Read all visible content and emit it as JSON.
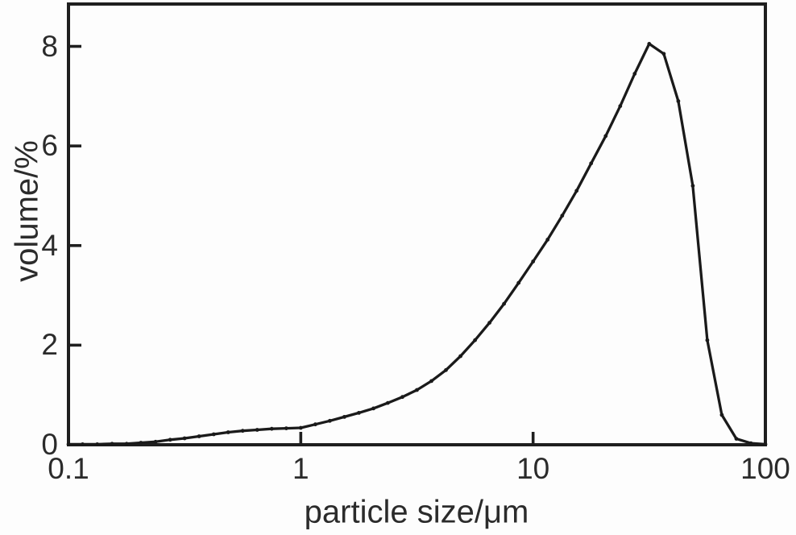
{
  "figure": {
    "background": "#fdfdfd",
    "line_color": "#1a1a1a",
    "axis_color": "#1f1f1f",
    "text_color": "#2b2b2b"
  },
  "chart_data": {
    "type": "line",
    "title": "",
    "xlabel": "particle size/μm",
    "ylabel": "volume/%",
    "x_scale": "log",
    "y_scale": "linear",
    "xlim": [
      0.1,
      100
    ],
    "ylim": [
      0,
      8.85
    ],
    "grid": false,
    "legend": null,
    "marker": "dot",
    "x_ticks": [
      {
        "value": 0.1,
        "label": "0.1"
      },
      {
        "value": 1,
        "label": "1"
      },
      {
        "value": 10,
        "label": "10"
      },
      {
        "value": 100,
        "label": "100"
      }
    ],
    "y_ticks": [
      {
        "value": 0,
        "label": "0"
      },
      {
        "value": 2,
        "label": "2"
      },
      {
        "value": 4,
        "label": "4"
      },
      {
        "value": 6,
        "label": "6"
      },
      {
        "value": 8,
        "label": "8"
      }
    ],
    "points": [
      [
        0.1,
        0.01
      ],
      [
        0.115,
        0.01
      ],
      [
        0.133,
        0.01
      ],
      [
        0.154,
        0.02
      ],
      [
        0.178,
        0.02
      ],
      [
        0.205,
        0.04
      ],
      [
        0.237,
        0.06
      ],
      [
        0.274,
        0.1
      ],
      [
        0.316,
        0.13
      ],
      [
        0.365,
        0.17
      ],
      [
        0.422,
        0.21
      ],
      [
        0.487,
        0.25
      ],
      [
        0.562,
        0.28
      ],
      [
        0.649,
        0.3
      ],
      [
        0.75,
        0.32
      ],
      [
        0.866,
        0.33
      ],
      [
        1.0,
        0.34
      ],
      [
        1.155,
        0.41
      ],
      [
        1.334,
        0.48
      ],
      [
        1.54,
        0.56
      ],
      [
        1.778,
        0.64
      ],
      [
        2.054,
        0.73
      ],
      [
        2.371,
        0.84
      ],
      [
        2.738,
        0.96
      ],
      [
        3.162,
        1.1
      ],
      [
        3.652,
        1.28
      ],
      [
        4.217,
        1.5
      ],
      [
        4.87,
        1.78
      ],
      [
        5.623,
        2.1
      ],
      [
        6.494,
        2.45
      ],
      [
        7.499,
        2.83
      ],
      [
        8.66,
        3.25
      ],
      [
        10.0,
        3.68
      ],
      [
        11.55,
        4.12
      ],
      [
        13.34,
        4.6
      ],
      [
        15.4,
        5.1
      ],
      [
        17.78,
        5.65
      ],
      [
        20.54,
        6.2
      ],
      [
        23.71,
        6.8
      ],
      [
        27.38,
        7.45
      ],
      [
        31.62,
        8.05
      ],
      [
        36.52,
        7.85
      ],
      [
        42.17,
        6.9
      ],
      [
        48.7,
        5.2
      ],
      [
        56.23,
        2.1
      ],
      [
        64.94,
        0.6
      ],
      [
        74.99,
        0.12
      ],
      [
        86.6,
        0.03
      ],
      [
        100.0,
        0.01
      ]
    ]
  }
}
